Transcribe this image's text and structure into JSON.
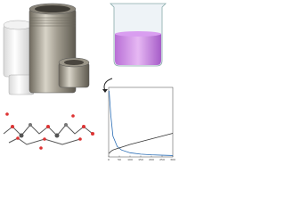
{
  "chart_data": {
    "type": "line",
    "x": [
      2,
      10,
      20,
      40,
      60,
      100,
      150,
      200,
      250,
      300
    ],
    "series": [
      {
        "color": "#2a6db5",
        "values": [
          0.95,
          0.6,
          0.3,
          0.15,
          0.1,
          0.06,
          0.04,
          0.03,
          0.025,
          0.02
        ]
      },
      {
        "color": "#333333",
        "values": [
          0.05,
          0.08,
          0.1,
          0.12,
          0.14,
          0.18,
          0.22,
          0.26,
          0.3,
          0.34
        ]
      }
    ],
    "xlim": [
      0,
      300
    ],
    "xticks": [
      0,
      50,
      100,
      150,
      200,
      250,
      300
    ],
    "ylim": [
      0,
      1
    ]
  }
}
